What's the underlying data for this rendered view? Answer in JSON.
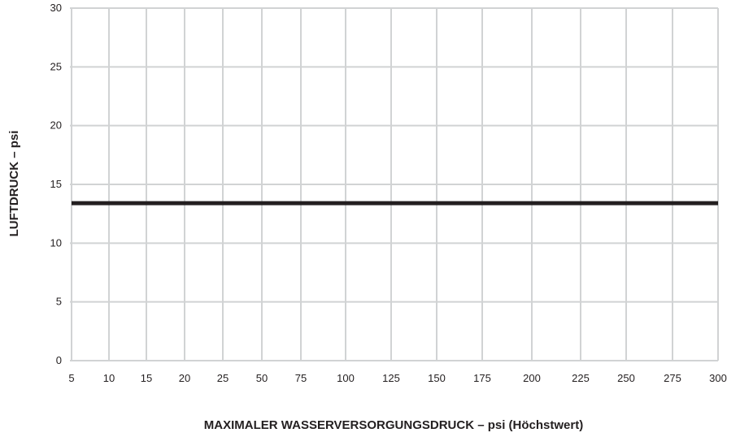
{
  "chart_data": {
    "type": "line",
    "title": "",
    "xlabel": "MAXIMALER WASSERVERSORGUNGSDRUCK – psi (Höchstwert)",
    "ylabel": "LUFTDRUCK – psi",
    "x_scale": "categorical",
    "x_categories": [
      "5",
      "10",
      "15",
      "20",
      "25",
      "50",
      "75",
      "100",
      "125",
      "150",
      "175",
      "200",
      "225",
      "250",
      "275",
      "300"
    ],
    "x_tick_labels": [
      "5",
      "10",
      "15",
      "20",
      "25",
      "50",
      "75",
      "100",
      "125",
      "150",
      "175",
      "200",
      "225",
      "250",
      "275",
      "300"
    ],
    "y_ticks": [
      0,
      5,
      10,
      15,
      20,
      25,
      30
    ],
    "y_tick_labels": [
      "0",
      "5",
      "10",
      "15",
      "20",
      "25",
      "30"
    ],
    "ylim": [
      0,
      30
    ],
    "grid": true,
    "legend": "none",
    "series": [
      {
        "x": [
          "5",
          "300"
        ],
        "values": [
          13.4,
          13.4
        ],
        "color": "#231f20"
      }
    ],
    "colors": {
      "grid": "#d1d3d4",
      "line": "#231f20",
      "text": "#231f20"
    }
  }
}
